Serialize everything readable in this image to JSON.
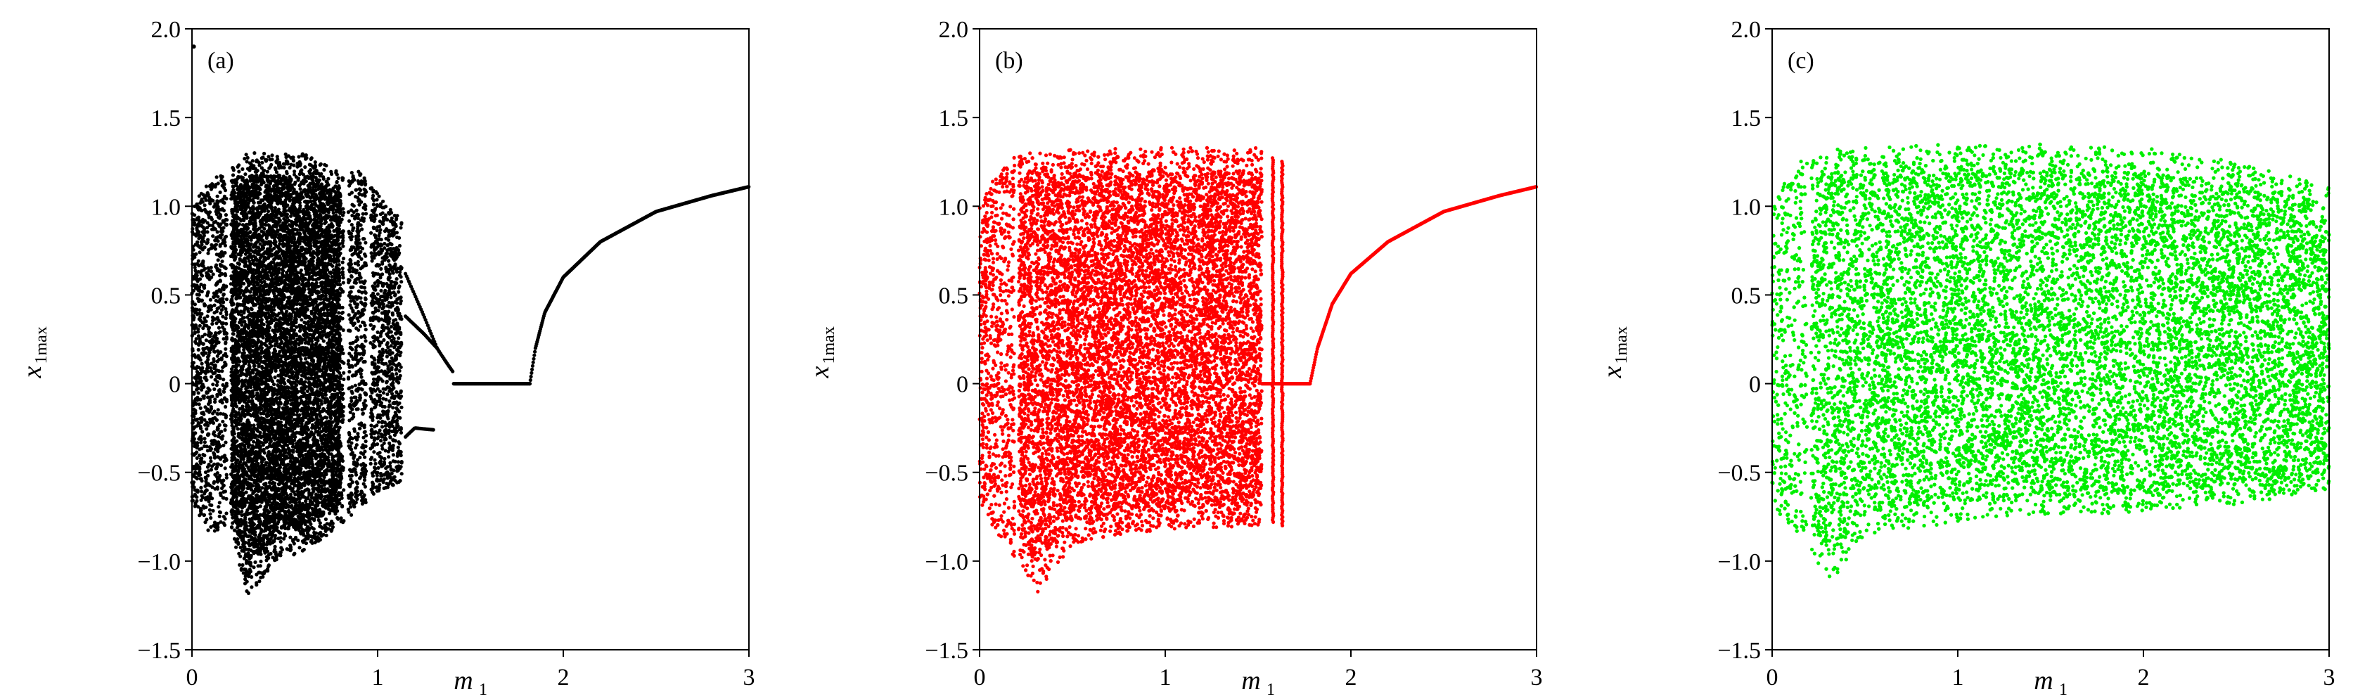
{
  "chart_data": [
    {
      "type": "scatter",
      "panel_label": "(a)",
      "xlabel": "m",
      "xlabel_sub": "1",
      "ylabel": "x",
      "ylabel_sub": "1max",
      "xlim": [
        0,
        3
      ],
      "ylim": [
        -1.5,
        2.0
      ],
      "xticks": [
        "0",
        "1",
        "2",
        "3"
      ],
      "yticks": [
        "−1.5",
        "−1.0",
        "−0.5",
        "0",
        "0.5",
        "1.0",
        "1.5",
        "2.0"
      ],
      "ytick_values": [
        -1.5,
        -1.0,
        -0.5,
        0,
        0.5,
        1.0,
        1.5,
        2.0
      ],
      "grid": false,
      "color": "#000000",
      "chaotic_envelope": [
        [
          0.0,
          -0.68,
          1.0
        ],
        [
          0.1,
          -0.85,
          1.15
        ],
        [
          0.2,
          -0.8,
          1.2
        ],
        [
          0.3,
          -1.2,
          1.3
        ],
        [
          0.45,
          -1.0,
          1.3
        ],
        [
          0.6,
          -0.95,
          1.3
        ],
        [
          0.8,
          -0.8,
          1.2
        ],
        [
          0.9,
          -0.7,
          1.2
        ],
        [
          1.0,
          -0.62,
          1.07
        ],
        [
          1.13,
          -0.55,
          0.92
        ]
      ],
      "gaps": [
        0.2,
        0.83,
        0.95
      ],
      "periodic_branches": [
        {
          "m": [
            1.15,
            1.2,
            1.25,
            1.32
          ],
          "x": [
            0.62,
            0.5,
            0.38,
            0.2
          ]
        },
        {
          "m": [
            1.15,
            1.2,
            1.25,
            1.32
          ],
          "x": [
            0.38,
            0.33,
            0.28,
            0.2
          ]
        },
        {
          "m": [
            1.15,
            1.2,
            1.3
          ],
          "x": [
            -0.3,
            -0.25,
            -0.26
          ]
        },
        {
          "m": [
            1.32,
            1.37,
            1.41
          ],
          "x": [
            0.2,
            0.12,
            0.06
          ]
        }
      ],
      "fixed_point": {
        "m_range": [
          1.41,
          1.82
        ],
        "x": 0
      },
      "upper_branch": {
        "m": [
          1.82,
          1.85,
          1.9,
          2.0,
          2.2,
          2.5,
          2.8,
          3.0
        ],
        "x": [
          0.0,
          0.2,
          0.4,
          0.6,
          0.8,
          0.97,
          1.06,
          1.11
        ]
      },
      "outlier": {
        "m": 0.01,
        "x": 1.9
      }
    },
    {
      "type": "scatter",
      "panel_label": "(b)",
      "xlabel": "m",
      "xlabel_sub": "1",
      "ylabel": "x",
      "ylabel_sub": "1max",
      "xlim": [
        0,
        3
      ],
      "ylim": [
        -1.5,
        2.0
      ],
      "xticks": [
        "0",
        "1",
        "2",
        "3"
      ],
      "yticks": [
        "−1.5",
        "−1.0",
        "−0.5",
        "0",
        "0.5",
        "1.0",
        "1.5",
        "2.0"
      ],
      "ytick_values": [
        -1.5,
        -1.0,
        -0.5,
        0,
        0.5,
        1.0,
        1.5,
        2.0
      ],
      "grid": false,
      "color": "#ff0000",
      "chaotic_envelope": [
        [
          0.0,
          -0.68,
          1.0
        ],
        [
          0.1,
          -0.85,
          1.2
        ],
        [
          0.2,
          -1.0,
          1.3
        ],
        [
          0.3,
          -1.2,
          1.3
        ],
        [
          0.5,
          -0.9,
          1.32
        ],
        [
          1.0,
          -0.82,
          1.33
        ],
        [
          1.52,
          -0.8,
          1.33
        ]
      ],
      "gaps": [
        0.2
      ],
      "vertical_lines": [
        {
          "m": 1.58,
          "x_range": [
            -0.78,
            1.28
          ]
        },
        {
          "m": 1.63,
          "x_range": [
            -0.8,
            1.26
          ]
        }
      ],
      "periodic_branches": [],
      "fixed_point": {
        "m_range": [
          1.52,
          1.78
        ],
        "x": 0
      },
      "upper_branch": {
        "m": [
          1.78,
          1.82,
          1.9,
          2.0,
          2.2,
          2.5,
          2.8,
          3.0
        ],
        "x": [
          0.0,
          0.2,
          0.45,
          0.62,
          0.8,
          0.97,
          1.06,
          1.11
        ]
      }
    },
    {
      "type": "scatter",
      "panel_label": "(c)",
      "xlabel": "m",
      "xlabel_sub": "1",
      "ylabel": "x",
      "ylabel_sub": "1max",
      "xlim": [
        0,
        3
      ],
      "ylim": [
        -1.5,
        2.0
      ],
      "xticks": [
        "0",
        "1",
        "2",
        "3"
      ],
      "yticks": [
        "−1.5",
        "−1.0",
        "−0.5",
        "0",
        "0.5",
        "1.0",
        "1.5",
        "2.0"
      ],
      "ytick_values": [
        -1.5,
        -1.0,
        -0.5,
        0,
        0.5,
        1.0,
        1.5,
        2.0
      ],
      "grid": false,
      "color": "#00ee00",
      "chaotic_envelope": [
        [
          0.0,
          -0.68,
          1.0
        ],
        [
          0.1,
          -0.85,
          1.2
        ],
        [
          0.2,
          -0.9,
          1.3
        ],
        [
          0.3,
          -1.15,
          1.32
        ],
        [
          0.5,
          -0.85,
          1.33
        ],
        [
          1.0,
          -0.78,
          1.35
        ],
        [
          1.5,
          -0.75,
          1.35
        ],
        [
          2.0,
          -0.72,
          1.33
        ],
        [
          2.5,
          -0.68,
          1.25
        ],
        [
          3.0,
          -0.6,
          1.12
        ]
      ],
      "gaps": [
        0.2
      ],
      "periodic_branches": []
    }
  ]
}
